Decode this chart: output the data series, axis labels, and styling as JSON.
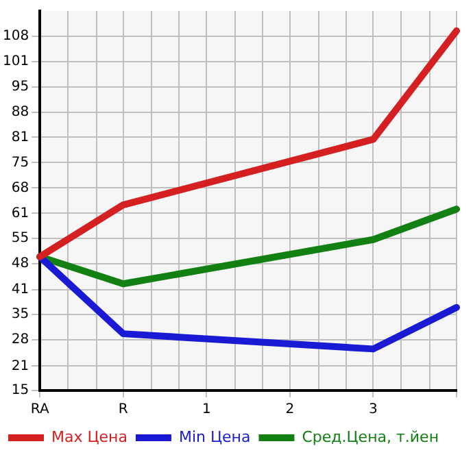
{
  "chart_data": {
    "type": "line",
    "categories": [
      "RA",
      "R",
      "1",
      "2",
      "3",
      null
    ],
    "series": [
      {
        "name": "Max Цена",
        "color": "#d42020",
        "values": [
          50.1,
          63.7,
          null,
          null,
          80.9,
          109.4
        ]
      },
      {
        "name": "Min Цена",
        "color": "#1a1ad4",
        "values": [
          50.1,
          29.9,
          null,
          null,
          25.9,
          36.8
        ]
      },
      {
        "name": "Сред.Цена, т.йен",
        "color": "#138013",
        "values": [
          50.1,
          43.0,
          null,
          null,
          54.6,
          62.6
        ]
      }
    ],
    "ylim": [
      15,
      114.6
    ],
    "yticks": [
      15,
      {
        "value": 21.4,
        "label": "21"
      },
      {
        "value": 28.29,
        "label": "28"
      },
      {
        "value": 34.93,
        "label": "35"
      },
      {
        "value": 41.4,
        "label": "41"
      },
      {
        "value": 48.21,
        "label": "48"
      },
      {
        "value": 54.86,
        "label": "55"
      },
      {
        "value": 61.5,
        "label": "61"
      },
      {
        "value": 68.14,
        "label": "68"
      },
      {
        "value": 74.79,
        "label": "75"
      },
      {
        "value": 81.43,
        "label": "81"
      },
      {
        "value": 88.07,
        "label": "88"
      },
      {
        "value": 94.71,
        "label": "95"
      },
      {
        "value": 101.36,
        "label": "101"
      },
      108
    ],
    "grid": true,
    "legend": "bottom",
    "marker": "none",
    "line_style": "solid"
  }
}
